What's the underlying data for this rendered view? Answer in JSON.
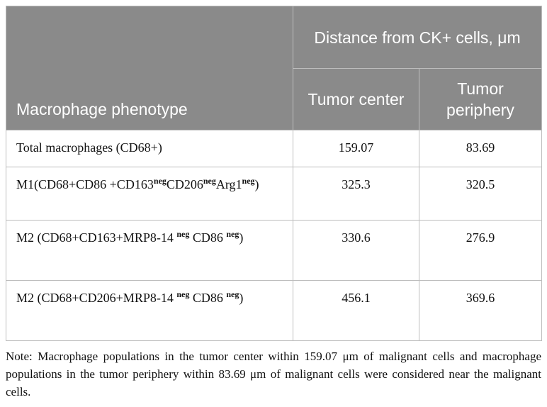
{
  "table": {
    "header": {
      "phenotype": "Macrophage phenotype",
      "distance": "Distance from CK+ cells, μm",
      "center": "Tumor center",
      "periphery": "Tumor periphery"
    },
    "rows": [
      {
        "label": [
          "Total macrophages (CD68+)"
        ],
        "center": 159.07,
        "periphery": 83.69
      },
      {
        "label": [
          "M1(CD68+CD86 +CD163",
          "neg",
          "CD206",
          "neg",
          "Arg1",
          "neg",
          ")"
        ],
        "center": 325.3,
        "periphery": 320.5
      },
      {
        "label": [
          "M2 (CD68+CD163+MRP8-14 ",
          "neg",
          " CD86 ",
          "neg",
          ")"
        ],
        "center": 330.6,
        "periphery": 276.9
      },
      {
        "label": [
          "M2 (CD68+CD206+MRP8-14 ",
          "neg",
          " CD86 ",
          "neg",
          ")"
        ],
        "center": 456.1,
        "periphery": 369.6
      }
    ],
    "note": "Note: Macrophage populations in the tumor center within 159.07 μm of malignant cells and macrophage populations in the tumor periphery within 83.69 μm of malignant cells were considered near the malignant cells."
  }
}
